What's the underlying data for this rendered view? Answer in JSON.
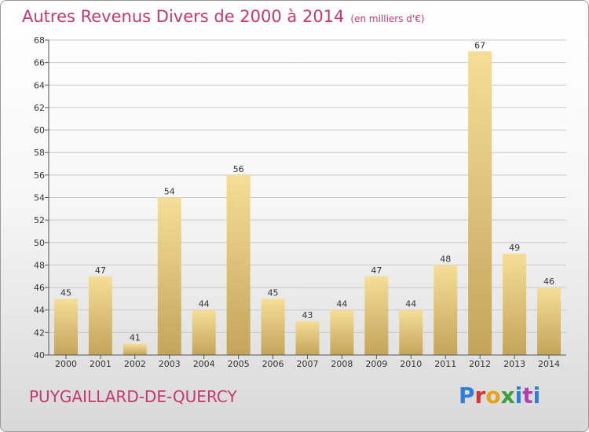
{
  "header": {
    "title": "Autres Revenus Divers de 2000 à 2014",
    "unit": "(en milliers d'€)"
  },
  "footer": {
    "place": "PUYGAILLARD-DE-QUERCY",
    "logo": "Proxiti"
  },
  "colors": {
    "title": "#c8386e",
    "bar_top": "#f5de97",
    "bar_bottom": "#c3a45a",
    "grid": "#c8c8c8",
    "axis": "#555555"
  },
  "chart_data": {
    "type": "bar",
    "title": "Autres Revenus Divers de 2000 à 2014",
    "subtitle": "(en milliers d'€)",
    "xlabel": "",
    "ylabel": "",
    "categories": [
      "2000",
      "2001",
      "2002",
      "2003",
      "2004",
      "2005",
      "2006",
      "2007",
      "2008",
      "2009",
      "2010",
      "2011",
      "2012",
      "2013",
      "2014"
    ],
    "values": [
      45,
      47,
      41,
      54,
      44,
      56,
      45,
      43,
      44,
      47,
      44,
      48,
      67,
      49,
      46
    ],
    "ylim": [
      40,
      68
    ],
    "yticks": [
      40,
      42,
      44,
      46,
      48,
      50,
      52,
      54,
      56,
      58,
      60,
      62,
      64,
      66,
      68
    ],
    "grid": true,
    "data_labels": true
  }
}
